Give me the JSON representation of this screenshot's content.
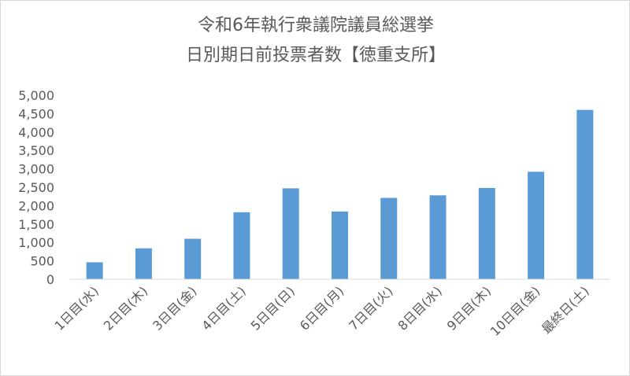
{
  "chart_data": {
    "type": "bar",
    "title_lines": [
      "令和6年執行衆議院議員総選挙",
      "日別期日前投票者数【徳重支所】"
    ],
    "categories": [
      "1日目(水)",
      "2日目(木)",
      "3日目(金)",
      "4日目(土)",
      "5日目(日)",
      "6日目(月)",
      "7日目(火)",
      "8日目(水)",
      "9日目(木)",
      "10日目(金)",
      "最終日(土)"
    ],
    "values": [
      460,
      840,
      1100,
      1820,
      2470,
      1840,
      2210,
      2280,
      2480,
      2920,
      4600
    ],
    "ylim": [
      0,
      5000
    ],
    "yticks": [
      0,
      500,
      1000,
      1500,
      2000,
      2500,
      3000,
      3500,
      4000,
      4500,
      5000
    ],
    "ytick_labels": [
      "0",
      "500",
      "1,000",
      "1,500",
      "2,000",
      "2,500",
      "3,000",
      "3,500",
      "4,000",
      "4,500",
      "5,000"
    ],
    "grid": false,
    "legend": "none",
    "bar_color": "#5b9bd5"
  }
}
